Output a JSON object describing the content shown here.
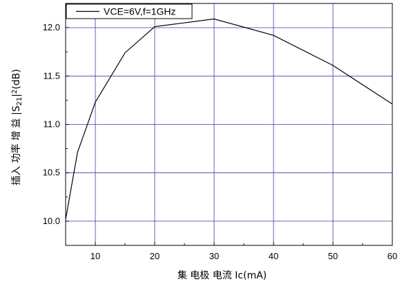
{
  "chart_data": {
    "type": "line",
    "xlabel": "集 电极 电流 Ic(mA)",
    "ylabel": {
      "prefix": "插入 功率 增 益 |S",
      "sub": "21",
      "mid": "|",
      "sup": "2",
      "suffix": "(dB)"
    },
    "xlim": [
      5,
      60
    ],
    "ylim": [
      9.75,
      12.25
    ],
    "xticks": [
      10,
      20,
      30,
      40,
      50,
      60
    ],
    "yticks": [
      10.0,
      10.5,
      11.0,
      11.5,
      12.0
    ],
    "ytick_labels": [
      "10.0",
      "10.5",
      "11.0",
      "11.5",
      "12.0"
    ],
    "grid": true,
    "legend_position": "top-left",
    "series": [
      {
        "name": "VCE=6V,f=1GHz",
        "color": "#000000",
        "x": [
          5,
          7,
          10,
          15,
          20,
          30,
          40,
          50,
          60
        ],
        "y": [
          10.02,
          10.71,
          11.23,
          11.74,
          12.01,
          12.09,
          11.92,
          11.61,
          11.21
        ]
      }
    ]
  }
}
